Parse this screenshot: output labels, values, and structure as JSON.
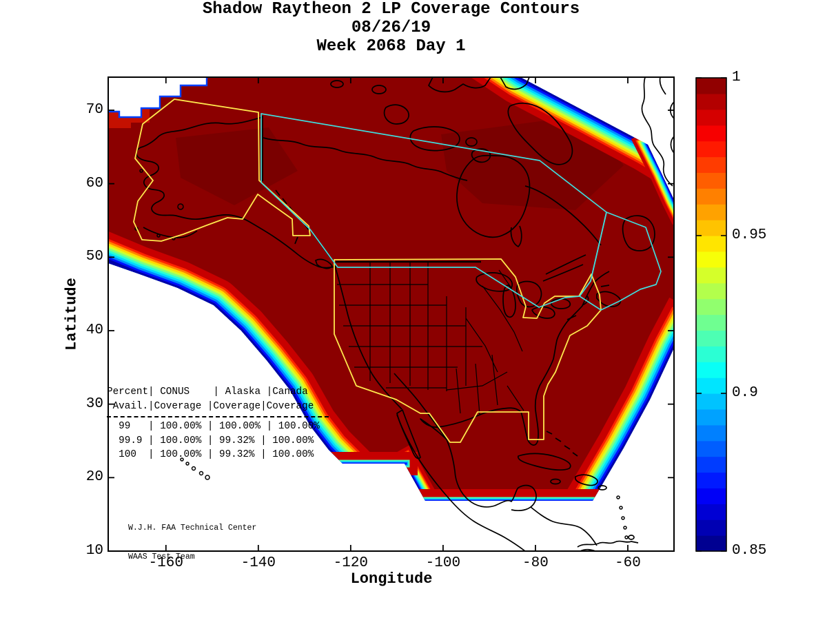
{
  "title": {
    "line1": "Shadow Raytheon 2 LP Coverage Contours",
    "line2": "08/26/19",
    "line3": "Week 2068 Day 1"
  },
  "axes": {
    "x_label": "Longitude",
    "y_label": "Latitude",
    "x_tick_labels": [
      "-160",
      "-140",
      "-120",
      "-100",
      "-80",
      "-60"
    ],
    "y_tick_labels": [
      "70",
      "60",
      "50",
      "40",
      "30",
      "20",
      "10"
    ]
  },
  "colorbar": {
    "tick_labels": [
      "1",
      "0.95",
      "0.9",
      "0.85"
    ]
  },
  "table": {
    "header": [
      "Percent| CONUS    | Alaska |Canada",
      " Avail.|Coverage |Coverage|Coverage"
    ],
    "rows": [
      "  99   | 100.00% | 100.00% | 100.00%",
      "  99.9 | 100.00% | 99.32% | 100.00%",
      "  100  | 100.00% | 99.32% | 100.00%"
    ]
  },
  "credit": {
    "line1": "W.J.H. FAA Technical Center",
    "line2": "WAAS Test Team"
  },
  "chart_data": {
    "type": "heatmap",
    "subtype": "geographic coverage contour map, MATLAB-style, jet colormap",
    "title": "Shadow Raytheon 2 LP Coverage Contours",
    "date": "08/26/19",
    "week": 2068,
    "day": 1,
    "xlabel": "Longitude",
    "ylabel": "Latitude",
    "xlim": [
      -172.5,
      -50
    ],
    "ylim": [
      10,
      74.5
    ],
    "x_ticks": [
      -160,
      -140,
      -120,
      -100,
      -80,
      -60
    ],
    "y_ticks": [
      70,
      60,
      50,
      40,
      30,
      20,
      10
    ],
    "grid": false,
    "colorbar": {
      "range": [
        0.85,
        1
      ],
      "tick_values": [
        1,
        0.95,
        0.9,
        0.85
      ],
      "colormap": "jet",
      "position": "right",
      "interior_value": 1
    },
    "region_outlines": [
      "Alaska (yellow)",
      "CONUS (yellow)",
      "Canada (cyan)"
    ],
    "availability_table": {
      "columns": [
        "Percent Avail.",
        "CONUS Coverage",
        "Alaska Coverage",
        "Canada Coverage"
      ],
      "rows": [
        [
          "99",
          "100.00%",
          "100.00%",
          "100.00%"
        ],
        [
          "99.9",
          "100.00%",
          "99.32%",
          "100.00%"
        ],
        [
          "100",
          "100.00%",
          "99.32%",
          "100.00%"
        ]
      ]
    },
    "colors": {
      "coverage_interior": "#8B0000",
      "conus_alaska_outline": "#FFE84D",
      "canada_outline": "#3FDDDD",
      "coastline": "#000000",
      "background": "#FFFFFF"
    }
  }
}
